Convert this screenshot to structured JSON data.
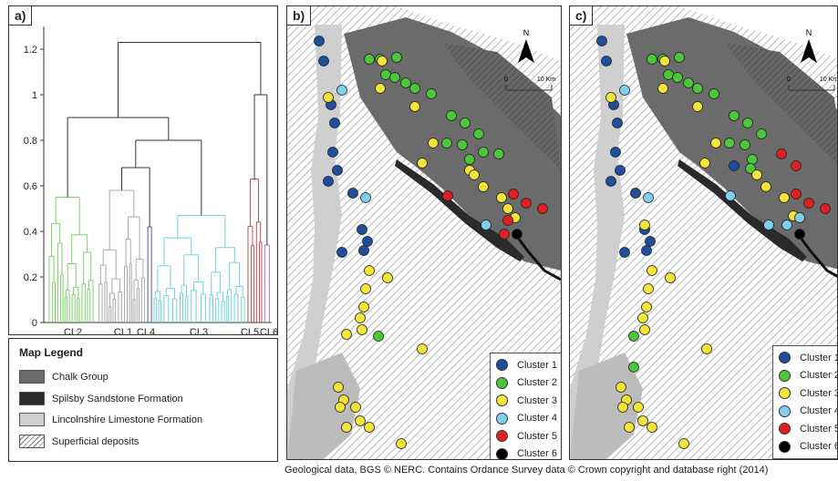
{
  "panel_a": {
    "letter": "a)",
    "chart_data": {
      "type": "dendrogram",
      "ylim": [
        0,
        1.3
      ],
      "yticks": [
        "0",
        "0.2",
        "0.4",
        "0.6",
        "0.8",
        "1",
        "1.2"
      ],
      "ytick_values": [
        0,
        0.2,
        0.4,
        0.6,
        0.8,
        1.0,
        1.2
      ],
      "clusters": [
        {
          "label": "CL2",
          "height": 0.55,
          "color": "#7fcf6a"
        },
        {
          "label": "CL1",
          "height": 0.58,
          "color": "#a8a8a8"
        },
        {
          "label": "CL4",
          "height": 0.42,
          "color": "#5a5a9a"
        },
        {
          "label": "CL3",
          "height": 0.47,
          "color": "#6fd3dc"
        },
        {
          "label": "CL5",
          "height": 0.63,
          "color": "#c0504d"
        },
        {
          "label": "CL6",
          "height": 0.34,
          "color": "#b06ad3"
        }
      ],
      "merges": [
        {
          "height": 0.68,
          "link": "CL1+CL4"
        },
        {
          "height": 0.8,
          "link": "CL1/CL4+CL3"
        },
        {
          "height": 0.9,
          "link": "CL2+rest"
        },
        {
          "height": 1.0,
          "link": "CL5+CL6"
        },
        {
          "height": 1.23,
          "link": "root"
        }
      ]
    }
  },
  "map_legend": {
    "title": "Map Legend",
    "items": [
      {
        "label": "Chalk Group",
        "color": "#6b6b6b"
      },
      {
        "label": "Spilsby Sandstone Formation",
        "color": "#2a2a2a"
      },
      {
        "label": "Lincolnshire Limestone Formation",
        "color": "#cfcfcf"
      },
      {
        "label": "Superficial deposits",
        "color": "hatch"
      }
    ]
  },
  "panel_b": {
    "letter": "b)",
    "north": "N",
    "scale_left": "0",
    "scale_right": "10 Km"
  },
  "panel_c": {
    "letter": "c)",
    "north": "N",
    "scale_left": "0",
    "scale_right": "10 Km"
  },
  "cluster_legend": [
    {
      "label": "Cluster 1",
      "color": "#1f4e9c"
    },
    {
      "label": "Cluster 2",
      "color": "#4cc63a"
    },
    {
      "label": "Cluster 3",
      "color": "#f3e33a"
    },
    {
      "label": "Cluster 4",
      "color": "#7fd0ef"
    },
    {
      "label": "Cluster 5",
      "color": "#e02020"
    },
    {
      "label": "Cluster 6",
      "color": "#000000"
    }
  ],
  "footer": "Geological data, BGS © NERC.  Contains Ordance Survey data © Crown copyright and database right (2014)"
}
